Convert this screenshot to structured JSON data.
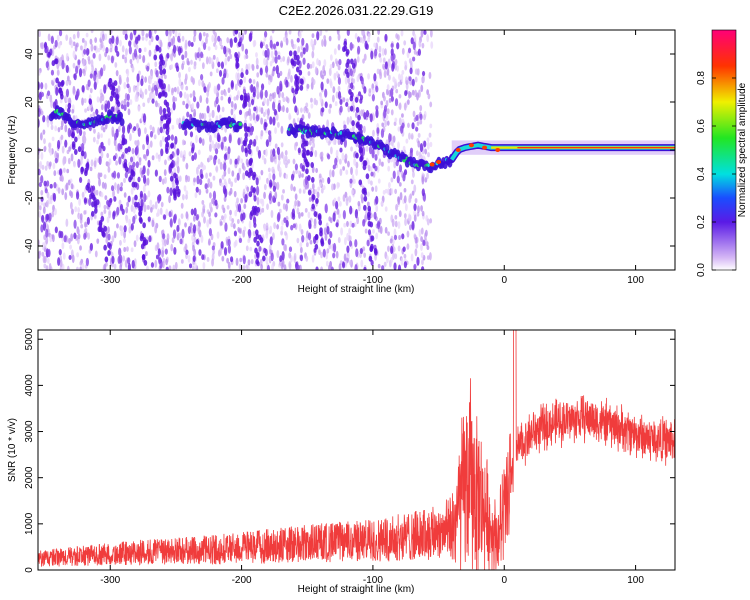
{
  "title": "C2E2.2026.031.22.29.G19",
  "chart_data": [
    {
      "type": "heatmap",
      "xlabel": "Height of straight line (km)",
      "ylabel": "Frequency (Hz)",
      "xlim": [
        -355,
        130
      ],
      "ylim": [
        -50,
        50
      ],
      "xticks": [
        -300,
        -200,
        -100,
        0,
        100
      ],
      "yticks": [
        -40,
        -20,
        0,
        20,
        40
      ],
      "xtick_labels": [
        "-300",
        "-200",
        "-100",
        "0",
        "100"
      ],
      "ytick_labels": [
        "-40",
        "-20",
        "0",
        "20",
        "40"
      ],
      "ridge": {
        "x": [
          -350,
          -340,
          -330,
          -320,
          -310,
          -300,
          -290,
          -250,
          -240,
          -230,
          -220,
          -210,
          -200,
          -160,
          -150,
          -140,
          -130,
          -120,
          -110,
          -100,
          -90,
          -80,
          -70,
          -60,
          -50,
          -40,
          -35,
          -30,
          -20,
          -10,
          0,
          10,
          50,
          100,
          130
        ],
        "y": [
          13,
          16,
          12,
          11,
          12,
          14,
          13,
          11,
          11,
          10,
          10,
          11,
          10,
          8,
          8,
          7,
          7,
          6,
          5,
          3,
          0,
          -3,
          -5,
          -7,
          -6,
          -4,
          0,
          1,
          2,
          1,
          1,
          1,
          1,
          1,
          1
        ]
      },
      "colorbar": {
        "label": "Normalized spectral amplitude",
        "range": [
          0,
          1
        ],
        "ticks": [
          0,
          0.2,
          0.4,
          0.6,
          0.8
        ],
        "tick_labels": [
          "0.0",
          "0.2",
          "0.4",
          "0.6",
          "0.8"
        ]
      }
    },
    {
      "type": "line",
      "xlabel": "Height of straight line (km)",
      "ylabel": "SNR (10 * v/v)",
      "xlim": [
        -355,
        130
      ],
      "ylim": [
        0,
        5200
      ],
      "xticks": [
        -300,
        -200,
        -100,
        0,
        100
      ],
      "yticks": [
        0,
        1000,
        2000,
        3000,
        4000,
        5000
      ],
      "xtick_labels": [
        "-300",
        "-200",
        "-100",
        "0",
        "100"
      ],
      "ytick_labels": [
        "0",
        "1000",
        "2000",
        "3000",
        "4000",
        "5000"
      ],
      "series": [
        {
          "color": "#f03c3c",
          "x": [
            -355,
            -340,
            -320,
            -300,
            -280,
            -260,
            -240,
            -220,
            -200,
            -180,
            -160,
            -140,
            -120,
            -100,
            -80,
            -60,
            -50,
            -40,
            -35,
            -30,
            -25,
            -20,
            -15,
            -10,
            -5,
            0,
            5,
            10,
            20,
            30,
            40,
            50,
            60,
            70,
            80,
            90,
            100,
            110,
            120,
            130
          ],
          "y": [
            220,
            250,
            280,
            310,
            340,
            360,
            380,
            400,
            440,
            470,
            500,
            540,
            560,
            580,
            640,
            700,
            760,
            850,
            1300,
            1800,
            2000,
            1600,
            1300,
            900,
            700,
            1200,
            1800,
            2600,
            2950,
            3100,
            3200,
            3250,
            3300,
            3250,
            3150,
            3050,
            2950,
            2850,
            2800,
            2800
          ]
        }
      ]
    }
  ]
}
